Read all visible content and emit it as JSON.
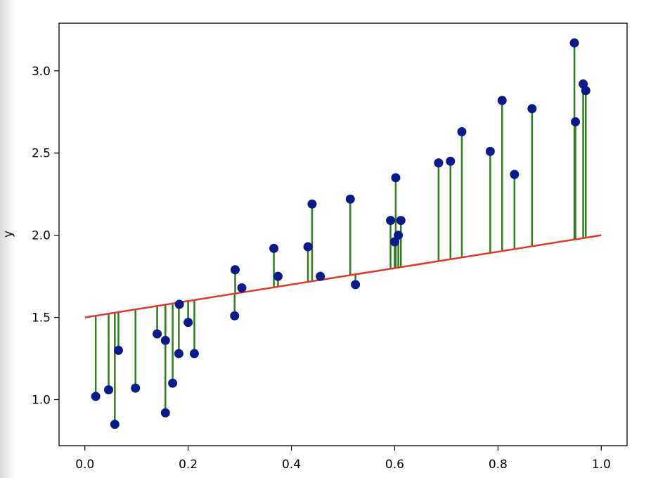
{
  "chart_data": {
    "type": "scatter",
    "title": "",
    "xlabel": "",
    "ylabel": "y",
    "xlim": [
      -0.05,
      1.05
    ],
    "ylim": [
      0.72,
      3.29
    ],
    "xticks": [
      "0.0",
      "0.2",
      "0.4",
      "0.6",
      "0.8",
      "1.0"
    ],
    "yticks": [
      "1.0",
      "1.5",
      "2.0",
      "2.5",
      "3.0"
    ],
    "grid": false,
    "colors": {
      "points": "#0b1a8a",
      "line": "#e0372a",
      "residuals": "#2f7d1e"
    },
    "fit_line": {
      "x": [
        0.0,
        1.0
      ],
      "y": [
        1.5,
        2.0
      ]
    },
    "points": [
      {
        "x": 0.021,
        "y": 1.02
      },
      {
        "x": 0.046,
        "y": 1.06
      },
      {
        "x": 0.058,
        "y": 0.85
      },
      {
        "x": 0.065,
        "y": 1.3
      },
      {
        "x": 0.098,
        "y": 1.07
      },
      {
        "x": 0.14,
        "y": 1.4
      },
      {
        "x": 0.156,
        "y": 1.36
      },
      {
        "x": 0.156,
        "y": 0.92
      },
      {
        "x": 0.17,
        "y": 1.1
      },
      {
        "x": 0.182,
        "y": 1.28
      },
      {
        "x": 0.183,
        "y": 1.58
      },
      {
        "x": 0.2,
        "y": 1.47
      },
      {
        "x": 0.212,
        "y": 1.28
      },
      {
        "x": 0.29,
        "y": 1.51
      },
      {
        "x": 0.291,
        "y": 1.79
      },
      {
        "x": 0.304,
        "y": 1.68
      },
      {
        "x": 0.366,
        "y": 1.92
      },
      {
        "x": 0.374,
        "y": 1.75
      },
      {
        "x": 0.432,
        "y": 1.93
      },
      {
        "x": 0.44,
        "y": 2.19
      },
      {
        "x": 0.456,
        "y": 1.75
      },
      {
        "x": 0.514,
        "y": 2.22
      },
      {
        "x": 0.524,
        "y": 1.7
      },
      {
        "x": 0.592,
        "y": 2.09
      },
      {
        "x": 0.6,
        "y": 1.96
      },
      {
        "x": 0.602,
        "y": 2.35
      },
      {
        "x": 0.607,
        "y": 2.0
      },
      {
        "x": 0.612,
        "y": 2.09
      },
      {
        "x": 0.685,
        "y": 2.44
      },
      {
        "x": 0.708,
        "y": 2.45
      },
      {
        "x": 0.73,
        "y": 2.63
      },
      {
        "x": 0.785,
        "y": 2.51
      },
      {
        "x": 0.808,
        "y": 2.82
      },
      {
        "x": 0.832,
        "y": 2.37
      },
      {
        "x": 0.866,
        "y": 2.77
      },
      {
        "x": 0.948,
        "y": 3.17
      },
      {
        "x": 0.95,
        "y": 2.69
      },
      {
        "x": 0.965,
        "y": 2.92
      },
      {
        "x": 0.97,
        "y": 2.88
      }
    ]
  }
}
